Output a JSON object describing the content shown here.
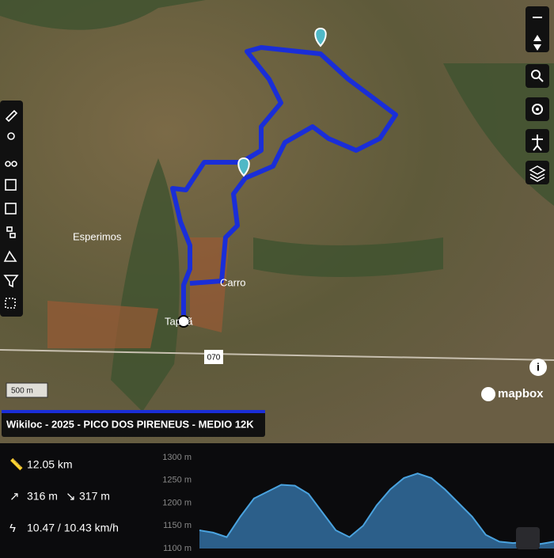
{
  "map": {
    "places": [
      "Esperimos",
      "Carro",
      "Tapuã"
    ],
    "road": "070",
    "scale": "500 m",
    "attribution": "mapbox"
  },
  "track_title": "Wikiloc - 2025 - PICO DOS PIRENEUS - MEDIO 12K",
  "stats": {
    "distance": "12.05 km",
    "ascent": "316 m",
    "descent": "317 m",
    "speed": "10.47 / 10.43 km/h"
  },
  "chart_data": {
    "type": "area",
    "color": "#2c5f8a",
    "line_color": "#4aa3df",
    "values": [
      1140,
      1135,
      1125,
      1170,
      1210,
      1225,
      1240,
      1238,
      1220,
      1180,
      1140,
      1125,
      1150,
      1195,
      1230,
      1255,
      1265,
      1255,
      1230,
      1200,
      1170,
      1130,
      1115,
      1112,
      1115,
      1110,
      1115
    ],
    "ylim": [
      1100,
      1300
    ],
    "yticks": [
      {
        "value": 1100,
        "label": "1100 m"
      },
      {
        "value": 1150,
        "label": "1150 m"
      },
      {
        "value": 1200,
        "label": "1200 m"
      },
      {
        "value": 1250,
        "label": "1250 m"
      },
      {
        "value": 1300,
        "label": "1300 m"
      }
    ]
  }
}
